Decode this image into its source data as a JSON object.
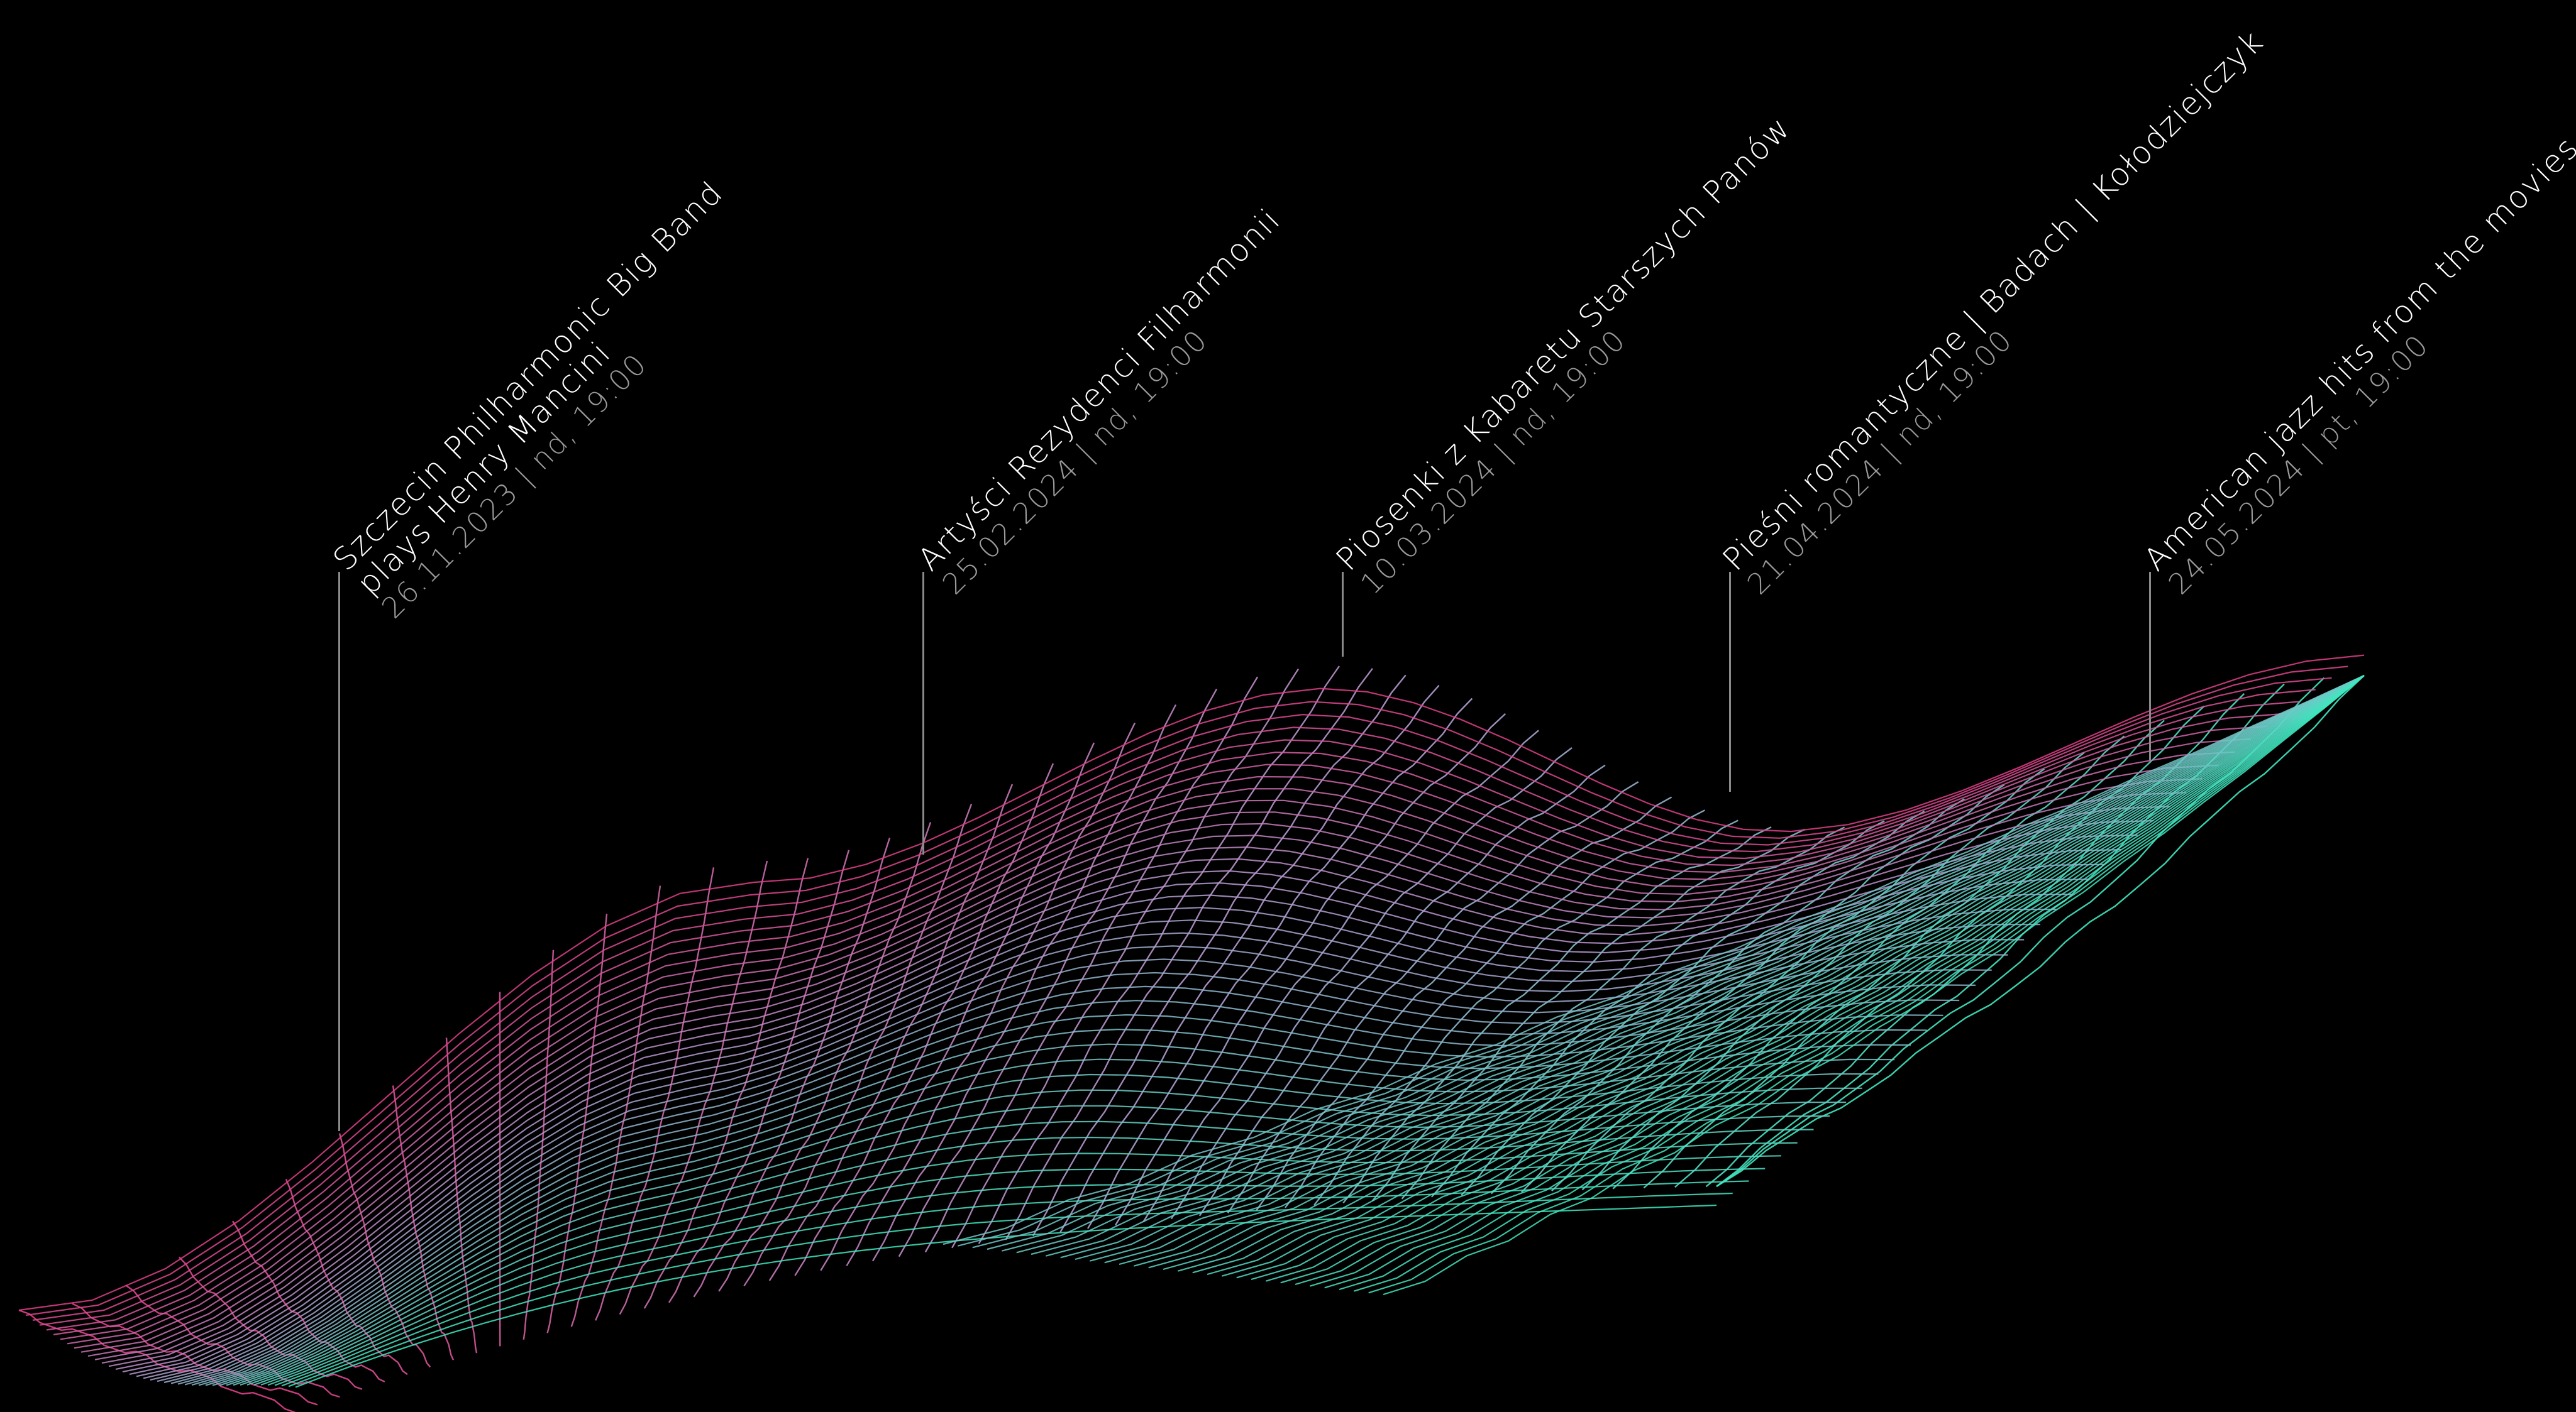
{
  "colors": {
    "background": "#000000",
    "mesh_pink": "#e0408a",
    "mesh_lavender": "#b59ad0",
    "mesh_teal": "#3ee8c0",
    "leader_line": "#8a8a8a",
    "title_text": "#ffffff",
    "date_text": "#9a9a9a"
  },
  "events": [
    {
      "id": "mancini",
      "title_lines": [
        "Szczecin Philharmonic Big Band",
        "plays Henry Mancini"
      ],
      "date": "26.11.2023 | nd, 19:00"
    },
    {
      "id": "rezydenci",
      "title_lines": [
        "Artyści Rezydenci Filharmonii"
      ],
      "date": "25.02.2024 | nd, 19:00"
    },
    {
      "id": "kabaret",
      "title_lines": [
        "Piosenki z Kabaretu Starszych Panów"
      ],
      "date": "10.03.2024 | nd, 19:00"
    },
    {
      "id": "piesni",
      "title_lines": [
        "Pieśni romantyczne | Badach | Kołodziejczyk"
      ],
      "date": "21.04.2024 | nd, 19:00"
    },
    {
      "id": "jazz",
      "title_lines": [
        "American jazz hits from the movies"
      ],
      "date": "24.05.2024 | pt, 19:00"
    }
  ]
}
